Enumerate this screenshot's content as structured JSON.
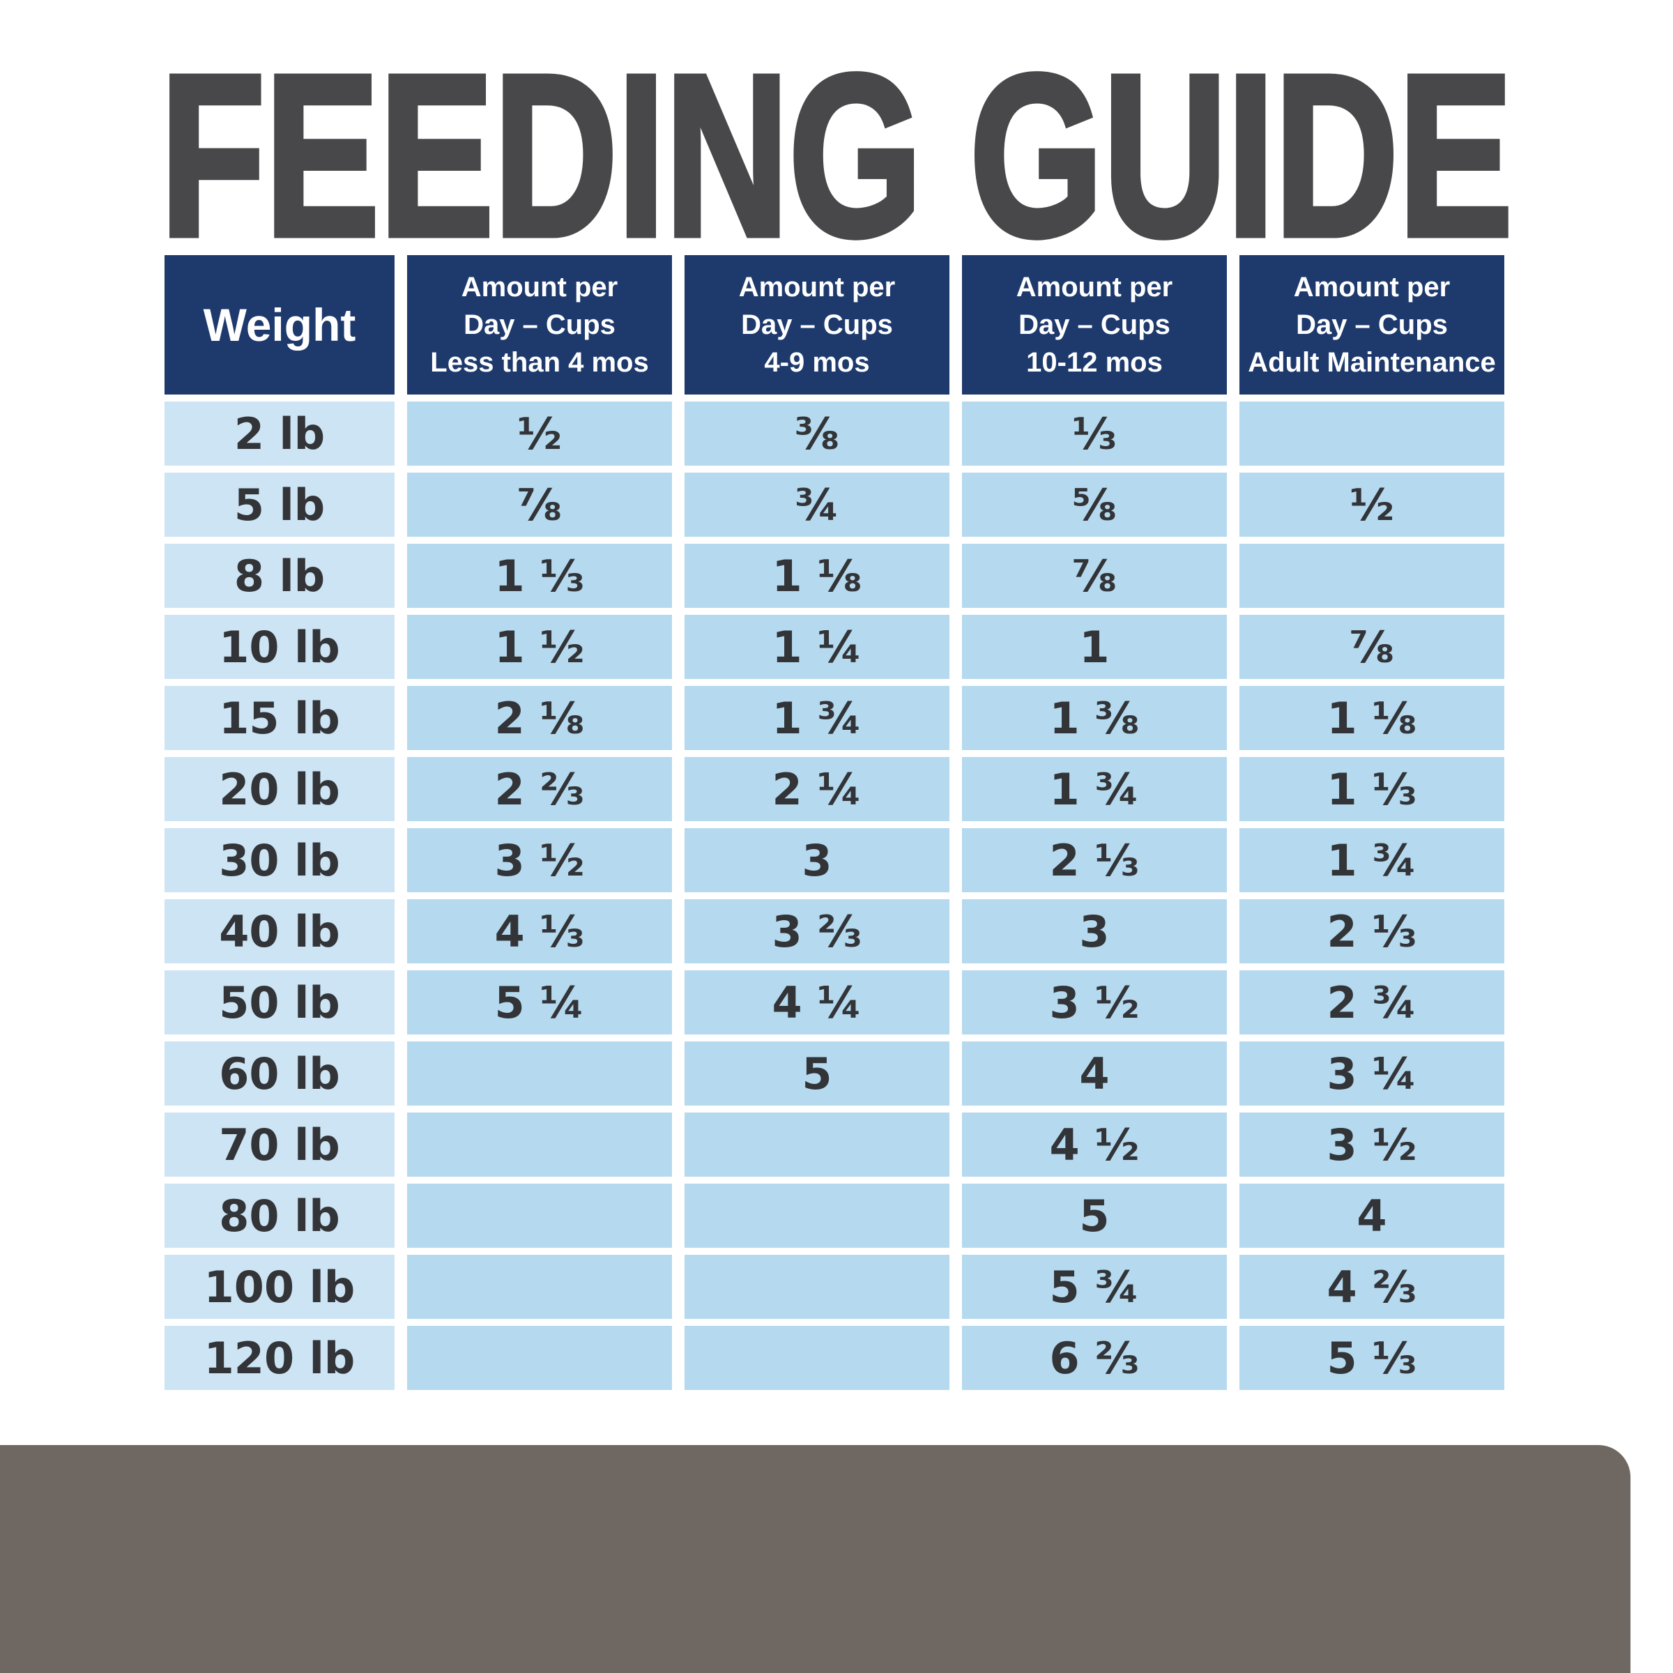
{
  "title": "FEEDING GUIDE",
  "colors": {
    "page-bg": "#ffffff",
    "title": "#48484b",
    "header-bg": "#1e3a6d",
    "header-text": "#ffffff",
    "weight-cell-bg": "#cde4f4",
    "value-cell-bg": "#b5d9ee",
    "cell-text": "#323438",
    "bottom-bar": "#6f6862"
  },
  "chart_data": {
    "type": "table",
    "title": "FEEDING GUIDE",
    "columns": [
      "Weight",
      "Amount per Day – Cups Less than 4 mos",
      "Amount per Day – Cups 4-9 mos",
      "Amount per Day – Cups 10-12 mos",
      "Amount per Day – Cups Adult Maintenance"
    ],
    "column_lines": [
      [
        "Weight"
      ],
      [
        "Amount per",
        "Day – Cups",
        "Less than 4 mos"
      ],
      [
        "Amount per",
        "Day – Cups",
        "4-9 mos"
      ],
      [
        "Amount per",
        "Day – Cups",
        "10-12 mos"
      ],
      [
        "Amount per",
        "Day – Cups",
        "Adult Maintenance"
      ]
    ],
    "rows": [
      [
        "2 lb",
        "½",
        "⅜",
        "⅓",
        ""
      ],
      [
        "5 lb",
        "⅞",
        "¾",
        "⅝",
        "½"
      ],
      [
        "8 lb",
        "1 ⅓",
        "1 ⅛",
        "⅞",
        ""
      ],
      [
        "10 lb",
        "1 ½",
        "1 ¼",
        "1",
        "⅞"
      ],
      [
        "15 lb",
        "2 ⅛",
        "1 ¾",
        "1 ⅜",
        "1 ⅛"
      ],
      [
        "20 lb",
        "2 ⅔",
        "2 ¼",
        "1 ¾",
        "1 ⅓"
      ],
      [
        "30 lb",
        "3 ½",
        "3",
        "2 ⅓",
        "1 ¾"
      ],
      [
        "40 lb",
        "4 ⅓",
        "3 ⅔",
        "3",
        "2 ⅓"
      ],
      [
        "50 lb",
        "5 ¼",
        "4 ¼",
        "3 ½",
        "2 ¾"
      ],
      [
        "60 lb",
        "",
        "5",
        "4",
        "3 ¼"
      ],
      [
        "70 lb",
        "",
        "",
        "4 ½",
        "3 ½"
      ],
      [
        "80 lb",
        "",
        "",
        "5",
        "4"
      ],
      [
        "100 lb",
        "",
        "",
        "5 ¾",
        "4 ⅔"
      ],
      [
        "120 lb",
        "",
        "",
        "6 ⅔",
        "5 ⅓"
      ]
    ]
  }
}
